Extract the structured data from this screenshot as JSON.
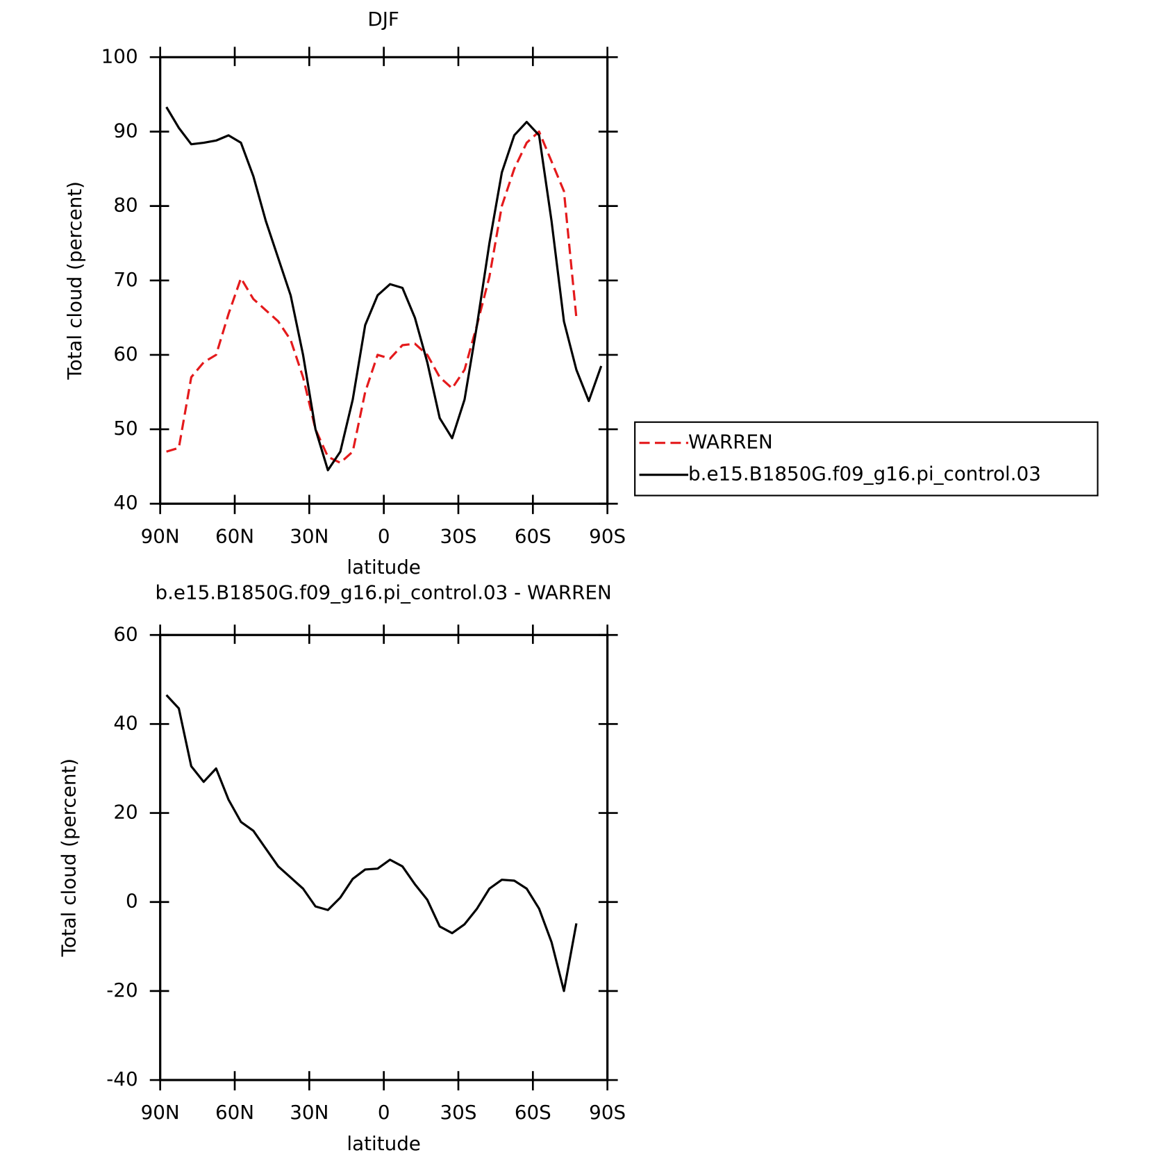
{
  "chart_data": [
    {
      "type": "line",
      "title": "DJF",
      "x_label": "latitude",
      "y_label": "Total cloud (percent)",
      "x": [
        87.5,
        82.5,
        77.5,
        72.5,
        67.5,
        62.5,
        57.5,
        52.5,
        47.5,
        42.5,
        37.5,
        32.5,
        27.5,
        22.5,
        17.5,
        12.5,
        7.5,
        2.5,
        -2.5,
        -7.5,
        -12.5,
        -17.5,
        -22.5,
        -27.5,
        -32.5,
        -37.5,
        -42.5,
        -47.5,
        -52.5,
        -57.5,
        -62.5,
        -67.5,
        -72.5,
        -77.5,
        -82.5,
        -87.5
      ],
      "series": [
        {
          "name": "WARREN",
          "color": "#e41a1c",
          "dashed": true,
          "values": [
            47,
            47.5,
            57,
            59,
            60,
            65.5,
            70.3,
            67.5,
            66,
            64.5,
            62,
            57,
            50,
            46.3,
            45.5,
            47,
            55,
            60,
            59.5,
            61.3,
            61.5,
            60,
            57,
            55.5,
            58,
            64,
            70.5,
            80,
            85,
            88.5,
            90,
            86,
            82,
            65,
            null,
            null
          ]
        },
        {
          "name": "b.e15.B1850G.f09_g16.pi_control.03",
          "color": "#000000",
          "dashed": false,
          "values": [
            93.3,
            90.5,
            88.3,
            88.5,
            88.8,
            89.5,
            88.5,
            84,
            78,
            73,
            68,
            60,
            50,
            44.5,
            47,
            54,
            64,
            68,
            69.5,
            69,
            65,
            59,
            51.5,
            48.8,
            54,
            64,
            75,
            84.5,
            89.5,
            91.3,
            89.5,
            78,
            64.5,
            58,
            53.8,
            58.5
          ]
        }
      ],
      "xlim": [
        90,
        -90
      ],
      "xticks": [
        {
          "value": 90,
          "label": "90N"
        },
        {
          "value": 60,
          "label": "60N"
        },
        {
          "value": 30,
          "label": "30N"
        },
        0,
        {
          "value": -30,
          "label": "30S"
        },
        {
          "value": -60,
          "label": "60S"
        },
        {
          "value": -90,
          "label": "90S"
        }
      ],
      "ylim": [
        40,
        100
      ],
      "yticks": [
        40,
        50,
        60,
        70,
        80,
        90,
        100
      ],
      "legend": "right"
    },
    {
      "type": "line",
      "title": "b.e15.B1850G.f09_g16.pi_control.03 - WARREN",
      "x_label": "latitude",
      "y_label": "Total cloud (percent)",
      "x": [
        87.5,
        82.5,
        77.5,
        72.5,
        67.5,
        62.5,
        57.5,
        52.5,
        47.5,
        42.5,
        37.5,
        32.5,
        27.5,
        22.5,
        17.5,
        12.5,
        7.5,
        2.5,
        -2.5,
        -7.5,
        -12.5,
        -17.5,
        -22.5,
        -27.5,
        -32.5,
        -37.5,
        -42.5,
        -47.5,
        -52.5,
        -57.5,
        -62.5,
        -67.5,
        -72.5,
        -77.5,
        -82.5,
        -87.5
      ],
      "color": "#000000",
      "values": [
        46.5,
        43.5,
        30.5,
        27,
        30,
        23,
        18,
        16,
        12,
        8,
        5.5,
        3,
        -1,
        -1.8,
        1,
        5.2,
        7.3,
        7.5,
        9.5,
        8,
        4,
        0.5,
        -5.5,
        -7,
        -5,
        -1.5,
        3,
        5,
        4.8,
        3,
        -1.5,
        -9,
        -20,
        -4.8,
        null,
        null
      ],
      "xlim": [
        90,
        -90
      ],
      "xticks": [
        {
          "value": 90,
          "label": "90N"
        },
        {
          "value": 60,
          "label": "60N"
        },
        {
          "value": 30,
          "label": "30N"
        },
        0,
        {
          "value": -30,
          "label": "30S"
        },
        {
          "value": -60,
          "label": "60S"
        },
        {
          "value": -90,
          "label": "90S"
        }
      ],
      "ylim": [
        -40,
        60
      ],
      "yticks": [
        -40,
        -20,
        0,
        20,
        40,
        60
      ]
    }
  ]
}
